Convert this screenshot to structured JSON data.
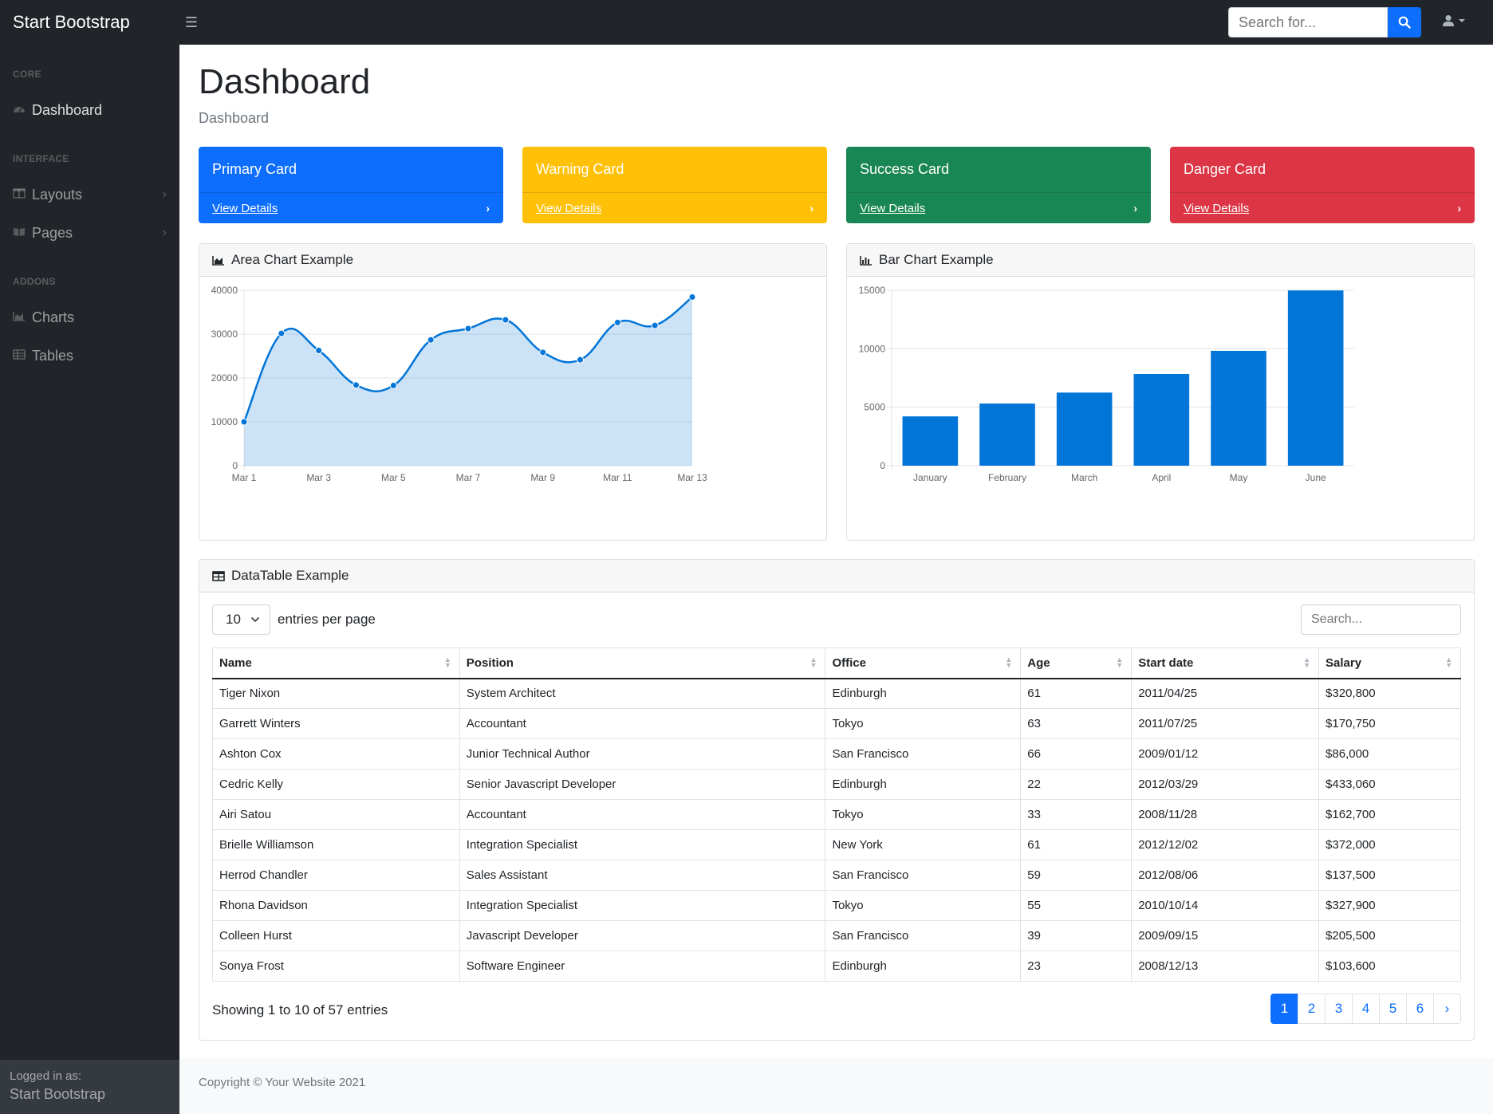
{
  "brand": "Start Bootstrap",
  "nav": {
    "toggle_icon": "bars-icon",
    "search_placeholder": "Search for...",
    "search_icon": "search-icon",
    "user_icon": "user-icon"
  },
  "sidebar": {
    "headings": [
      "CORE",
      "INTERFACE",
      "ADDONS"
    ],
    "items": [
      {
        "label": "Dashboard",
        "icon": "tachometer-icon"
      },
      {
        "label": "Layouts",
        "icon": "columns-icon"
      },
      {
        "label": "Pages",
        "icon": "book-open-icon"
      },
      {
        "label": "Charts",
        "icon": "chart-area-icon"
      },
      {
        "label": "Tables",
        "icon": "table-icon"
      }
    ],
    "footer_small": "Logged in as:",
    "footer_name": "Start Bootstrap"
  },
  "page": {
    "title": "Dashboard",
    "breadcrumb": "Dashboard"
  },
  "cards": [
    {
      "title": "Primary Card",
      "link": "View Details",
      "color": "#0d6efd"
    },
    {
      "title": "Warning Card",
      "link": "View Details",
      "color": "#ffc107"
    },
    {
      "title": "Success Card",
      "link": "View Details",
      "color": "#198754"
    },
    {
      "title": "Danger Card",
      "link": "View Details",
      "color": "#dc3545"
    }
  ],
  "area_panel": {
    "title": "Area Chart Example"
  },
  "bar_panel": {
    "title": "Bar Chart Example"
  },
  "chart_data": [
    {
      "type": "area",
      "x": [
        "Mar 1",
        "Mar 2",
        "Mar 3",
        "Mar 4",
        "Mar 5",
        "Mar 6",
        "Mar 7",
        "Mar 8",
        "Mar 9",
        "Mar 10",
        "Mar 11",
        "Mar 12",
        "Mar 13"
      ],
      "x_tick_labels": [
        "Mar 1",
        "Mar 3",
        "Mar 5",
        "Mar 7",
        "Mar 9",
        "Mar 11",
        "Mar 13"
      ],
      "values": [
        10000,
        30162,
        26263,
        18394,
        18287,
        28682,
        31274,
        33259,
        25849,
        24159,
        32651,
        31984,
        38451
      ],
      "ylim": [
        0,
        40000
      ],
      "y_ticks": [
        0,
        10000,
        20000,
        30000,
        40000
      ],
      "color": "#0275d8",
      "fill": "rgba(2,117,216,0.2)"
    },
    {
      "type": "bar",
      "categories": [
        "January",
        "February",
        "March",
        "April",
        "May",
        "June"
      ],
      "values": [
        4215,
        5312,
        6251,
        7841,
        9821,
        14984
      ],
      "ylim": [
        0,
        15000
      ],
      "y_ticks": [
        0,
        5000,
        10000,
        15000
      ],
      "color": "#0275d8"
    }
  ],
  "table": {
    "title": "DataTable Example",
    "per_page": "10",
    "per_page_label": "entries per page",
    "search_placeholder": "Search...",
    "columns": [
      "Name",
      "Position",
      "Office",
      "Age",
      "Start date",
      "Salary"
    ],
    "rows": [
      [
        "Tiger Nixon",
        "System Architect",
        "Edinburgh",
        "61",
        "2011/04/25",
        "$320,800"
      ],
      [
        "Garrett Winters",
        "Accountant",
        "Tokyo",
        "63",
        "2011/07/25",
        "$170,750"
      ],
      [
        "Ashton Cox",
        "Junior Technical Author",
        "San Francisco",
        "66",
        "2009/01/12",
        "$86,000"
      ],
      [
        "Cedric Kelly",
        "Senior Javascript Developer",
        "Edinburgh",
        "22",
        "2012/03/29",
        "$433,060"
      ],
      [
        "Airi Satou",
        "Accountant",
        "Tokyo",
        "33",
        "2008/11/28",
        "$162,700"
      ],
      [
        "Brielle Williamson",
        "Integration Specialist",
        "New York",
        "61",
        "2012/12/02",
        "$372,000"
      ],
      [
        "Herrod Chandler",
        "Sales Assistant",
        "San Francisco",
        "59",
        "2012/08/06",
        "$137,500"
      ],
      [
        "Rhona Davidson",
        "Integration Specialist",
        "Tokyo",
        "55",
        "2010/10/14",
        "$327,900"
      ],
      [
        "Colleen Hurst",
        "Javascript Developer",
        "San Francisco",
        "39",
        "2009/09/15",
        "$205,500"
      ],
      [
        "Sonya Frost",
        "Software Engineer",
        "Edinburgh",
        "23",
        "2008/12/13",
        "$103,600"
      ]
    ],
    "info": "Showing 1 to 10 of 57 entries",
    "pages": [
      "1",
      "2",
      "3",
      "4",
      "5",
      "6",
      "›"
    ]
  },
  "footer": "Copyright © Your Website 2021"
}
